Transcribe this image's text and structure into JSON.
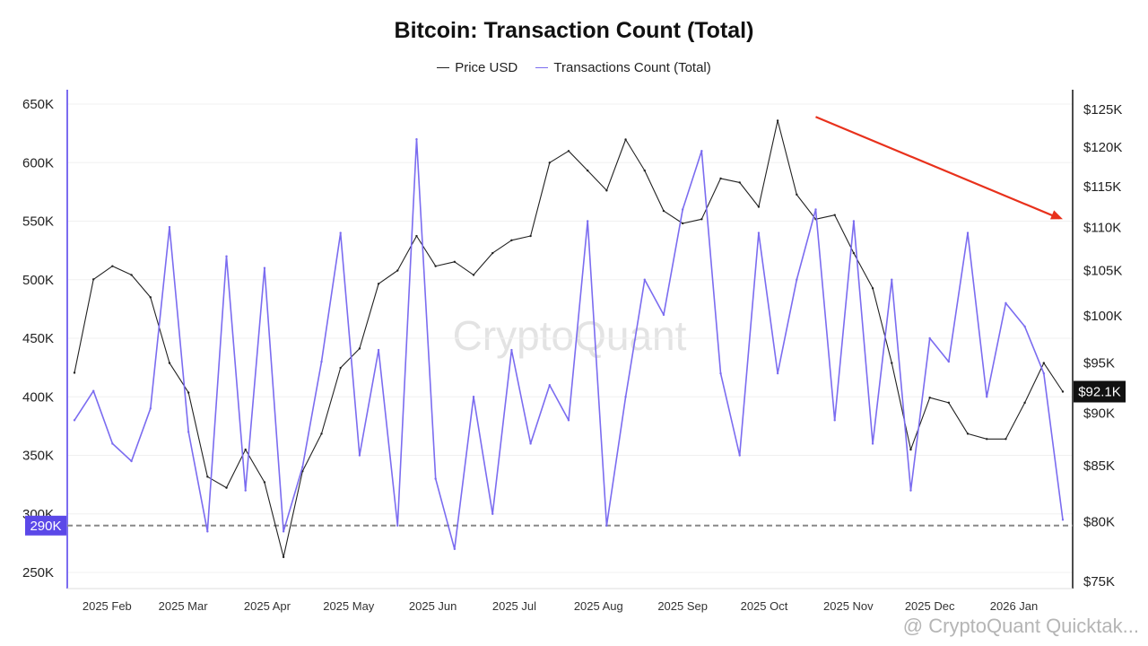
{
  "chart_data": {
    "type": "line",
    "title": "Bitcoin: Transaction Count (Total)",
    "legend": [
      {
        "name": "Price USD",
        "color": "#222222"
      },
      {
        "name": "Transactions Count (Total)",
        "color": "#7b6cf0"
      }
    ],
    "x_labels": [
      "2025 Feb",
      "2025 Mar",
      "2025 Apr",
      "2025 May",
      "2025 Jun",
      "2025 Jul",
      "2025 Aug",
      "2025 Sep",
      "2025 Oct",
      "2025 Nov",
      "2025 Dec",
      "2026 Jan"
    ],
    "x_range": [
      "2025-01-20",
      "2026-01-19"
    ],
    "y_left": {
      "ticks": [
        "650K",
        "600K",
        "550K",
        "500K",
        "450K",
        "400K",
        "350K",
        "300K",
        "250K"
      ],
      "ylim": [
        240000,
        655000
      ]
    },
    "y_right": {
      "ticks": [
        "$125K",
        "$120K",
        "$115K",
        "$110K",
        "$105K",
        "$100K",
        "$95K",
        "$90K",
        "$85K",
        "$80K",
        "$75K"
      ],
      "scale": "log",
      "ylim": [
        75000,
        125000
      ]
    },
    "reference_line": {
      "value": 290000,
      "label": "290K"
    },
    "current_price_label": "$92.1K",
    "series": [
      {
        "name": "Price USD",
        "axis": "right",
        "color": "#222222",
        "values": [
          [
            "2025-01-20",
            94000
          ],
          [
            "2025-01-27",
            104000
          ],
          [
            "2025-02-03",
            105500
          ],
          [
            "2025-02-10",
            104500
          ],
          [
            "2025-02-17",
            102000
          ],
          [
            "2025-02-24",
            95000
          ],
          [
            "2025-03-03",
            92000
          ],
          [
            "2025-03-10",
            84000
          ],
          [
            "2025-03-17",
            83000
          ],
          [
            "2025-03-24",
            86500
          ],
          [
            "2025-03-31",
            83500
          ],
          [
            "2025-04-07",
            77000
          ],
          [
            "2025-04-14",
            84500
          ],
          [
            "2025-04-21",
            88000
          ],
          [
            "2025-04-28",
            94500
          ],
          [
            "2025-05-05",
            96500
          ],
          [
            "2025-05-12",
            103500
          ],
          [
            "2025-05-19",
            105000
          ],
          [
            "2025-05-26",
            109000
          ],
          [
            "2025-06-02",
            105500
          ],
          [
            "2025-06-09",
            106000
          ],
          [
            "2025-06-16",
            104500
          ],
          [
            "2025-06-23",
            107000
          ],
          [
            "2025-06-30",
            108500
          ],
          [
            "2025-07-07",
            109000
          ],
          [
            "2025-07-14",
            118000
          ],
          [
            "2025-07-21",
            119500
          ],
          [
            "2025-07-28",
            117000
          ],
          [
            "2025-08-04",
            114500
          ],
          [
            "2025-08-11",
            121000
          ],
          [
            "2025-08-18",
            117000
          ],
          [
            "2025-08-25",
            112000
          ],
          [
            "2025-09-01",
            110500
          ],
          [
            "2025-09-08",
            111000
          ],
          [
            "2025-09-15",
            116000
          ],
          [
            "2025-09-22",
            115500
          ],
          [
            "2025-09-29",
            112500
          ],
          [
            "2025-10-06",
            123500
          ],
          [
            "2025-10-13",
            114000
          ],
          [
            "2025-10-20",
            111000
          ],
          [
            "2025-10-27",
            111500
          ],
          [
            "2025-11-03",
            107000
          ],
          [
            "2025-11-10",
            103000
          ],
          [
            "2025-11-17",
            95000
          ],
          [
            "2025-11-24",
            86500
          ],
          [
            "2025-12-01",
            91500
          ],
          [
            "2025-12-08",
            91000
          ],
          [
            "2025-12-15",
            88000
          ],
          [
            "2025-12-22",
            87500
          ],
          [
            "2025-12-29",
            87500
          ],
          [
            "2026-01-05",
            91000
          ],
          [
            "2026-01-12",
            95000
          ],
          [
            "2026-01-19",
            92100
          ]
        ]
      },
      {
        "name": "Transactions Count (Total)",
        "axis": "left",
        "color": "#7b6cf0",
        "values": [
          [
            "2025-01-20",
            380000
          ],
          [
            "2025-01-27",
            405000
          ],
          [
            "2025-02-03",
            360000
          ],
          [
            "2025-02-10",
            345000
          ],
          [
            "2025-02-17",
            390000
          ],
          [
            "2025-02-24",
            545000
          ],
          [
            "2025-03-03",
            370000
          ],
          [
            "2025-03-10",
            285000
          ],
          [
            "2025-03-17",
            520000
          ],
          [
            "2025-03-24",
            320000
          ],
          [
            "2025-03-31",
            510000
          ],
          [
            "2025-04-07",
            285000
          ],
          [
            "2025-04-14",
            340000
          ],
          [
            "2025-04-21",
            430000
          ],
          [
            "2025-04-28",
            540000
          ],
          [
            "2025-05-05",
            350000
          ],
          [
            "2025-05-12",
            440000
          ],
          [
            "2025-05-19",
            290000
          ],
          [
            "2025-05-26",
            620000
          ],
          [
            "2025-06-02",
            330000
          ],
          [
            "2025-06-09",
            270000
          ],
          [
            "2025-06-16",
            400000
          ],
          [
            "2025-06-23",
            300000
          ],
          [
            "2025-06-30",
            440000
          ],
          [
            "2025-07-07",
            360000
          ],
          [
            "2025-07-14",
            410000
          ],
          [
            "2025-07-21",
            380000
          ],
          [
            "2025-07-28",
            550000
          ],
          [
            "2025-08-04",
            290000
          ],
          [
            "2025-08-11",
            400000
          ],
          [
            "2025-08-18",
            500000
          ],
          [
            "2025-08-25",
            470000
          ],
          [
            "2025-09-01",
            560000
          ],
          [
            "2025-09-08",
            610000
          ],
          [
            "2025-09-15",
            420000
          ],
          [
            "2025-09-22",
            350000
          ],
          [
            "2025-09-29",
            540000
          ],
          [
            "2025-10-06",
            420000
          ],
          [
            "2025-10-13",
            500000
          ],
          [
            "2025-10-20",
            560000
          ],
          [
            "2025-10-27",
            380000
          ],
          [
            "2025-11-03",
            550000
          ],
          [
            "2025-11-10",
            360000
          ],
          [
            "2025-11-17",
            500000
          ],
          [
            "2025-11-24",
            320000
          ],
          [
            "2025-12-01",
            450000
          ],
          [
            "2025-12-08",
            430000
          ],
          [
            "2025-12-15",
            540000
          ],
          [
            "2025-12-22",
            400000
          ],
          [
            "2025-12-29",
            480000
          ],
          [
            "2026-01-05",
            460000
          ],
          [
            "2026-01-12",
            420000
          ],
          [
            "2026-01-19",
            295000
          ]
        ]
      }
    ],
    "annotations": [
      {
        "type": "arrow",
        "color": "#e8311c",
        "from": [
          "2025-10-20",
          124000
        ],
        "to": [
          "2026-01-19",
          111000
        ]
      }
    ],
    "watermark": "CryptoQuant",
    "footer_text": "@ CryptoQuant Quicktak..."
  }
}
